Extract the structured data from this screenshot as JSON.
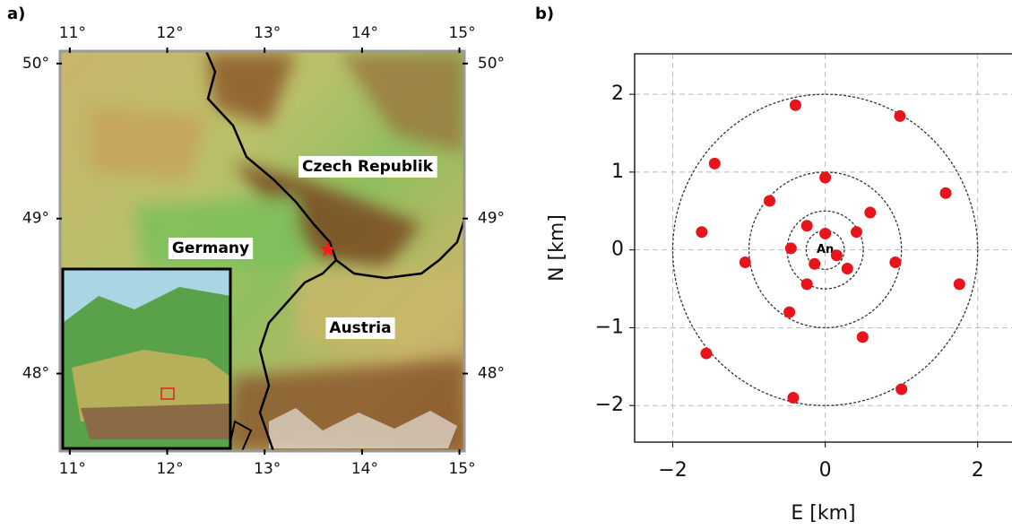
{
  "chart_data": [
    {
      "type": "map",
      "panel": "a)",
      "xlim": [
        10.9,
        15.05
      ],
      "ylim": [
        47.5,
        50.08
      ],
      "xticks": [
        {
          "value": 11,
          "label": "11°"
        },
        {
          "value": 12,
          "label": "12°"
        },
        {
          "value": 13,
          "label": "13°"
        },
        {
          "value": 14,
          "label": "14°"
        },
        {
          "value": 15,
          "label": "15°"
        }
      ],
      "yticks": [
        {
          "value": 48,
          "label": "48°"
        },
        {
          "value": 49,
          "label": "49°"
        },
        {
          "value": 50,
          "label": "50°"
        }
      ],
      "places": [
        "Czech Republik",
        "Germany",
        "Austria"
      ],
      "marker": {
        "lon": 13.65,
        "lat": 48.8,
        "color": "#ff1a1a"
      }
    },
    {
      "type": "scatter",
      "panel": "b)",
      "xlabel": "E [km]",
      "ylabel": "N [km]",
      "xlim": [
        -2.5,
        2.45
      ],
      "ylim": [
        -2.47,
        2.52
      ],
      "xticks": [
        {
          "value": -2,
          "label": "−2"
        },
        0,
        2
      ],
      "yticks": [
        {
          "value": -2,
          "label": "−2"
        },
        {
          "value": -1,
          "label": "−1"
        },
        0,
        1,
        2
      ],
      "grid": true,
      "circles": [
        0.25,
        0.5,
        1,
        2
      ],
      "center_label": "An",
      "color": "#e8141b",
      "x": [
        -0.39,
        0.98,
        -1.45,
        1.58,
        0,
        -0.73,
        0.59,
        -1.62,
        -0.24,
        0.41,
        0,
        -0.45,
        0.15,
        -0.14,
        0.29,
        -1.05,
        0.92,
        1.76,
        -0.24,
        -0.47,
        0.49,
        -1.56,
        -0.42,
        1.0
      ],
      "values": [
        1.86,
        1.72,
        1.11,
        0.73,
        0.93,
        0.63,
        0.48,
        0.23,
        0.31,
        0.23,
        0.21,
        0.02,
        -0.07,
        -0.18,
        -0.24,
        -0.16,
        -0.16,
        -0.44,
        -0.44,
        -0.8,
        -1.12,
        -1.33,
        -1.9,
        -1.79
      ]
    }
  ]
}
